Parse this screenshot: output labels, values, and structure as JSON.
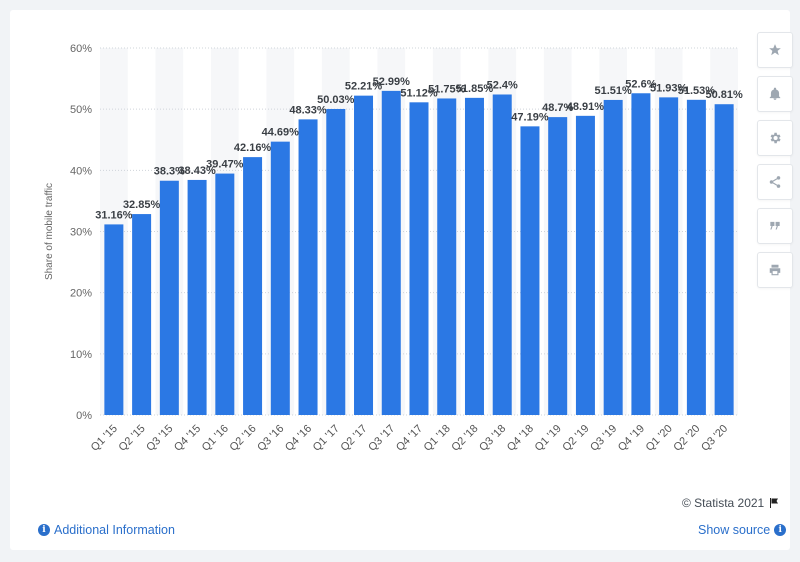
{
  "chart_data": {
    "type": "bar",
    "categories": [
      "Q1 '15",
      "Q2 '15",
      "Q3 '15",
      "Q4 '15",
      "Q1 '16",
      "Q2 '16",
      "Q3 '16",
      "Q4 '16",
      "Q1 '17",
      "Q2 '17",
      "Q3 '17",
      "Q4 '17",
      "Q1 '18",
      "Q2 '18",
      "Q3 '18",
      "Q4 '18",
      "Q1 '19",
      "Q2 '19",
      "Q3 '19",
      "Q4 '19",
      "Q1 '20",
      "Q2 '20",
      "Q3 '20"
    ],
    "values": [
      31.16,
      32.85,
      38.3,
      38.43,
      39.47,
      42.16,
      44.69,
      48.33,
      50.03,
      52.21,
      52.99,
      51.12,
      51.75,
      51.85,
      52.4,
      47.19,
      48.7,
      48.91,
      51.51,
      52.6,
      51.93,
      51.53,
      50.81
    ],
    "data_labels": [
      "31.16%",
      "32.85%",
      "38.3%",
      "38.43%",
      "39.47%",
      "42.16%",
      "44.69%",
      "48.33%",
      "50.03%",
      "52.21%",
      "52.99%",
      "51.12%",
      "51.75%",
      "51.85%",
      "52.4%",
      "47.19%",
      "48.7%",
      "48.91%",
      "51.51%",
      "52.6%",
      "51.93%",
      "51.53%",
      "50.81%"
    ],
    "ylabel": "Share of mobile traffic",
    "ylim": [
      0,
      60
    ],
    "yticks": [
      0,
      10,
      20,
      30,
      40,
      50,
      60
    ],
    "ytick_labels": [
      "0%",
      "10%",
      "20%",
      "30%",
      "40%",
      "50%",
      "60%"
    ],
    "grid": true,
    "bar_color": "#2b78e4"
  },
  "toolbar": {
    "buttons": [
      {
        "name": "star-icon"
      },
      {
        "name": "bell-icon"
      },
      {
        "name": "gear-icon"
      },
      {
        "name": "share-icon"
      },
      {
        "name": "quote-icon"
      },
      {
        "name": "print-icon"
      }
    ]
  },
  "footer": {
    "credit": "© Statista 2021",
    "additional_info": "Additional Information",
    "show_source": "Show source"
  }
}
